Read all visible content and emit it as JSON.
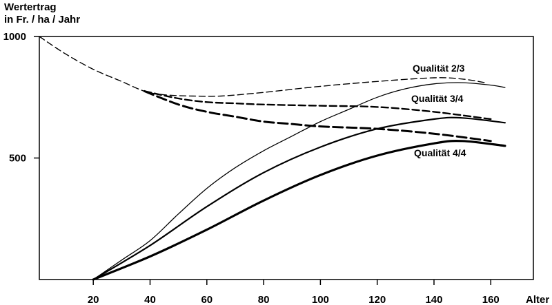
{
  "chart_data": {
    "type": "line",
    "ylabel_line1": "Wertertrag",
    "ylabel_line2": "in Fr. / ha / Jahr",
    "xlabel": "Alter",
    "xlim": [
      1,
      175
    ],
    "ylim": [
      0,
      1000
    ],
    "x_ticks": [
      20,
      40,
      60,
      80,
      100,
      120,
      140,
      160
    ],
    "y_ticks": [
      500,
      1000
    ],
    "grid": false,
    "series": [
      {
        "name": "Qualität 2/3",
        "style": "solid-thin",
        "x": [
          20,
          30,
          40,
          50,
          60,
          70,
          80,
          90,
          100,
          110,
          120,
          130,
          140,
          150,
          160,
          165
        ],
        "y": [
          0,
          80,
          160,
          270,
          375,
          460,
          530,
          590,
          650,
          700,
          750,
          785,
          805,
          810,
          800,
          790
        ]
      },
      {
        "name": "Qualität 3/4",
        "style": "solid-medium",
        "x": [
          20,
          40,
          60,
          80,
          100,
          120,
          140,
          150,
          165
        ],
        "y": [
          0,
          140,
          300,
          440,
          545,
          620,
          660,
          665,
          645
        ]
      },
      {
        "name": "Qualität 4/4",
        "style": "solid-thick",
        "x": [
          20,
          40,
          60,
          80,
          100,
          120,
          140,
          150,
          165
        ],
        "y": [
          0,
          95,
          205,
          325,
          430,
          510,
          560,
          570,
          550
        ]
      },
      {
        "name": "Qualität 2/3",
        "style": "dashed-thin",
        "x": [
          1,
          10,
          20,
          30,
          38,
          45,
          55,
          65,
          80,
          100,
          120,
          140,
          150,
          158
        ],
        "y": [
          1000,
          930,
          865,
          815,
          775,
          760,
          755,
          755,
          770,
          795,
          815,
          830,
          825,
          810
        ]
      },
      {
        "name": "Qualität 3/4",
        "style": "dashed-medium",
        "x": [
          38,
          50,
          60,
          70,
          80,
          100,
          120,
          140,
          160
        ],
        "y": [
          775,
          745,
          730,
          725,
          720,
          715,
          710,
          690,
          660
        ]
      },
      {
        "name": "Qualität 4/4",
        "style": "dashed-thick",
        "x": [
          38,
          50,
          60,
          70,
          80,
          90,
          100,
          120,
          140,
          160
        ],
        "y": [
          775,
          720,
          690,
          670,
          650,
          640,
          630,
          620,
          600,
          570
        ]
      }
    ],
    "annotations": [
      {
        "text": "Qualität  2/3"
      },
      {
        "text": "Qualität  3/4"
      },
      {
        "text": "Qualität 4/4"
      }
    ]
  }
}
